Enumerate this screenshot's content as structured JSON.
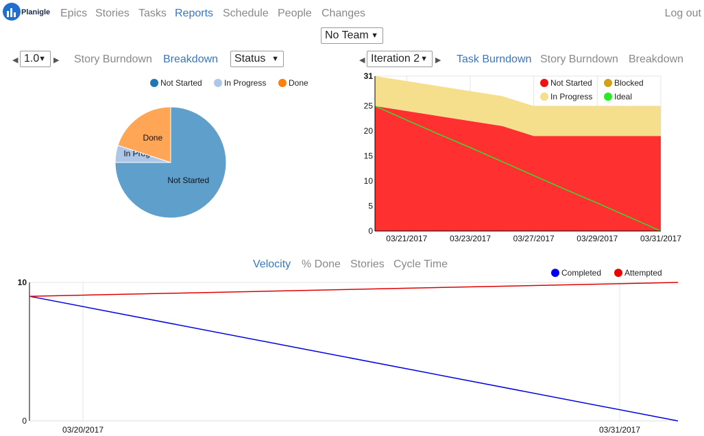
{
  "app": {
    "logo_text": "Planigle"
  },
  "nav": {
    "items": [
      {
        "label": "Epics",
        "active": false
      },
      {
        "label": "Stories",
        "active": false
      },
      {
        "label": "Tasks",
        "active": false
      },
      {
        "label": "Reports",
        "active": true
      },
      {
        "label": "Schedule",
        "active": false
      },
      {
        "label": "People",
        "active": false
      },
      {
        "label": "Changes",
        "active": false
      }
    ],
    "logout": "Log out"
  },
  "team_select": {
    "value": "No Team"
  },
  "left_panel": {
    "release_select": "1.0",
    "tabs": [
      "Story Burndown",
      "Breakdown"
    ],
    "active_tab": "Breakdown",
    "group_select": "Status"
  },
  "right_panel": {
    "iteration_select": "Iteration 2",
    "tabs": [
      "Task Burndown",
      "Story Burndown",
      "Breakdown"
    ],
    "active_tab": "Task Burndown"
  },
  "bottom_panel": {
    "tabs": [
      "Velocity",
      "% Done",
      "Stories",
      "Cycle Time"
    ],
    "active_tab": "Velocity"
  },
  "charts": {
    "colors": {
      "not_started": "#1f77b4",
      "not_started_slice": "#5f9fcc",
      "in_progress_pie": "#aec7e8",
      "done": "#ff7f0e",
      "done_slice": "#ffa556",
      "area_not_started": "#ff3030",
      "area_in_progress": "#f5df8c",
      "blocked": "#d4a017",
      "ideal": "#33dd33",
      "completed": "#0000dd",
      "attempted": "#dd0000"
    }
  },
  "chart_data": [
    {
      "type": "pie",
      "title": "",
      "legend": [
        "Not Started",
        "In Progress",
        "Done"
      ],
      "slices": [
        {
          "label": "Not Started",
          "value": 75
        },
        {
          "label": "In Progress",
          "value": 5
        },
        {
          "label": "Done",
          "value": 20
        }
      ],
      "legend_position": "top"
    },
    {
      "type": "area",
      "title": "",
      "x": [
        "03/20/2017",
        "03/21/2017",
        "03/22/2017",
        "03/23/2017",
        "03/24/2017",
        "03/27/2017",
        "03/28/2017",
        "03/29/2017",
        "03/30/2017",
        "03/31/2017"
      ],
      "x_ticks": [
        "03/21/2017",
        "03/23/2017",
        "03/27/2017",
        "03/29/2017",
        "03/31/2017"
      ],
      "ylim": [
        0,
        31
      ],
      "y_ticks": [
        0,
        5,
        10,
        15,
        20,
        25,
        31
      ],
      "series": [
        {
          "name": "Not Started",
          "values": [
            25,
            24,
            23,
            22,
            21,
            19,
            19,
            19,
            19,
            19
          ]
        },
        {
          "name": "In Progress",
          "values": [
            6,
            6,
            6,
            6,
            6,
            6,
            6,
            6,
            6,
            6
          ]
        },
        {
          "name": "Blocked",
          "values": [
            0,
            0,
            0,
            0,
            0,
            0,
            0,
            0,
            0,
            0
          ]
        },
        {
          "name": "Ideal",
          "values": [
            25,
            22.2,
            19.4,
            16.7,
            13.9,
            11.1,
            8.3,
            5.6,
            2.8,
            0
          ]
        }
      ],
      "legend": [
        "Not Started",
        "Blocked",
        "In Progress",
        "Ideal"
      ],
      "legend_position": "top-right",
      "grid": true
    },
    {
      "type": "line",
      "title": "",
      "x": [
        "03/19/2017",
        "03/31/2017"
      ],
      "x_ticks": [
        "03/20/2017",
        "03/31/2017"
      ],
      "ylim": [
        0,
        10
      ],
      "y_ticks": [
        0,
        10
      ],
      "series": [
        {
          "name": "Completed",
          "values": [
            9,
            0
          ]
        },
        {
          "name": "Attempted",
          "values": [
            9,
            10
          ]
        }
      ],
      "legend": [
        "Completed",
        "Attempted"
      ],
      "legend_position": "top-right",
      "grid": true
    }
  ]
}
